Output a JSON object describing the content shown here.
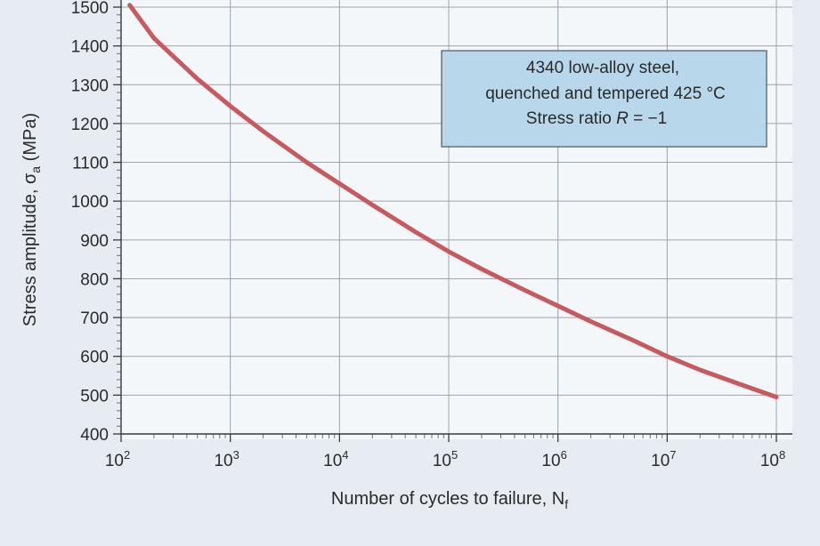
{
  "chart_data": {
    "type": "line",
    "title": "",
    "xlabel": "Number of cycles to failure, N",
    "xlabel_subscript": "f",
    "ylabel": "Stress amplitude, σ",
    "ylabel_subscript": "a",
    "ylabel_unit": " (MPa)",
    "x_scale": "log",
    "xlim": [
      100,
      100000000
    ],
    "ylim": [
      400,
      1500
    ],
    "grid": true,
    "legend": "none",
    "series_color": "#c75a5e",
    "x_ticks": [
      {
        "value": 100,
        "base": "10",
        "exp": "2"
      },
      {
        "value": 1000,
        "base": "10",
        "exp": "3"
      },
      {
        "value": 10000,
        "base": "10",
        "exp": "4"
      },
      {
        "value": 100000,
        "base": "10",
        "exp": "5"
      },
      {
        "value": 1000000,
        "base": "10",
        "exp": "6"
      },
      {
        "value": 10000000,
        "base": "10",
        "exp": "7"
      },
      {
        "value": 100000000,
        "base": "10",
        "exp": "8"
      }
    ],
    "y_ticks": [
      400,
      500,
      600,
      700,
      800,
      900,
      1000,
      1100,
      1200,
      1300,
      1400,
      1500
    ],
    "series": [
      {
        "x": [
          120,
          200,
          500,
          1000,
          2000,
          5000,
          10000,
          20000,
          50000,
          100000,
          200000,
          500000,
          1000000,
          2000000,
          5000000,
          10000000,
          20000000,
          50000000,
          100000000
        ],
        "y": [
          1505,
          1420,
          1315,
          1245,
          1180,
          1100,
          1045,
          990,
          920,
          870,
          825,
          770,
          730,
          690,
          640,
          600,
          565,
          525,
          495
        ]
      }
    ],
    "annotation": {
      "line1": "4340 low-alloy steel,",
      "line2": "quenched and tempered 425 °C",
      "line3_prefix": "Stress ratio ",
      "line3_var": "R",
      "line3_suffix": " = −1"
    }
  }
}
